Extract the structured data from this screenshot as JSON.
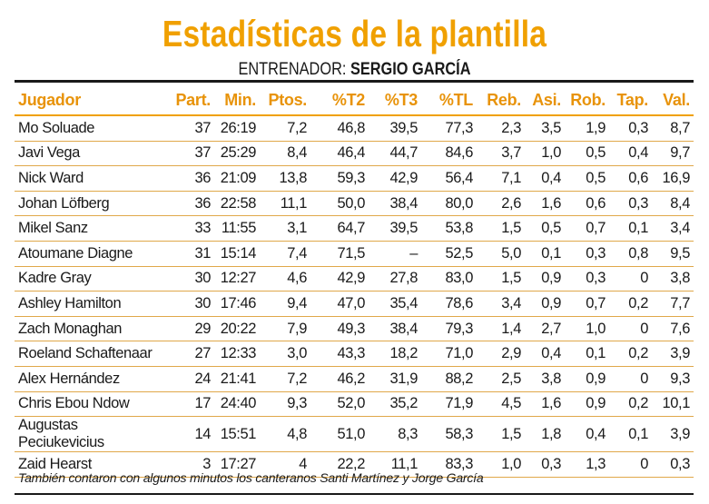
{
  "title": "Estadísticas de la plantilla",
  "coach": {
    "label": "ENTRENADOR:",
    "name": "SERGIO GARCÍA"
  },
  "colors": {
    "accent": "#f0a000",
    "text": "#1a1a1a"
  },
  "columns": [
    "Jugador",
    "Part.",
    "Min.",
    "Ptos.",
    "%T2",
    "%T3",
    "%TL",
    "Reb.",
    "Asi.",
    "Rob.",
    "Tap.",
    "Val."
  ],
  "rows": [
    [
      "Mo Soluade",
      "37",
      "26:19",
      "7,2",
      "46,8",
      "39,5",
      "77,3",
      "2,3",
      "3,5",
      "1,9",
      "0,3",
      "8,7"
    ],
    [
      "Javi Vega",
      "37",
      "25:29",
      "8,4",
      "46,4",
      "44,7",
      "84,6",
      "3,7",
      "1,0",
      "0,5",
      "0,4",
      "9,7"
    ],
    [
      "Nick Ward",
      "36",
      "21:09",
      "13,8",
      "59,3",
      "42,9",
      "56,4",
      "7,1",
      "0,4",
      "0,5",
      "0,6",
      "16,9"
    ],
    [
      "Johan Löfberg",
      "36",
      "22:58",
      "11,1",
      "50,0",
      "38,4",
      "80,0",
      "2,6",
      "1,6",
      "0,6",
      "0,3",
      "8,4"
    ],
    [
      "Mikel Sanz",
      "33",
      "11:55",
      "3,1",
      "64,7",
      "39,5",
      "53,8",
      "1,5",
      "0,5",
      "0,7",
      "0,1",
      "3,4"
    ],
    [
      "Atoumane Diagne",
      "31",
      "15:14",
      "7,4",
      "71,5",
      "–",
      "52,5",
      "5,0",
      "0,1",
      "0,3",
      "0,8",
      "9,5"
    ],
    [
      "Kadre Gray",
      "30",
      "12:27",
      "4,6",
      "42,9",
      "27,8",
      "83,0",
      "1,5",
      "0,9",
      "0,3",
      "0",
      "3,8"
    ],
    [
      "Ashley Hamilton",
      "30",
      "17:46",
      "9,4",
      "47,0",
      "35,4",
      "78,6",
      "3,4",
      "0,9",
      "0,7",
      "0,2",
      "7,7"
    ],
    [
      "Zach Monaghan",
      "29",
      "20:22",
      "7,9",
      "49,3",
      "38,4",
      "79,3",
      "1,4",
      "2,7",
      "1,0",
      "0",
      "7,6"
    ],
    [
      "Roeland Schaftenaar",
      "27",
      "12:33",
      "3,0",
      "43,3",
      "18,2",
      "71,0",
      "2,9",
      "0,4",
      "0,1",
      "0,2",
      "3,9"
    ],
    [
      "Alex Hernández",
      "24",
      "21:41",
      "7,2",
      "46,2",
      "31,9",
      "88,2",
      "2,5",
      "3,8",
      "0,9",
      "0",
      "9,3"
    ],
    [
      "Chris Ebou Ndow",
      "17",
      "24:40",
      "9,3",
      "52,0",
      "35,2",
      "71,9",
      "4,5",
      "1,6",
      "0,9",
      "0,2",
      "10,1"
    ],
    [
      "Augustas Peciukevicius",
      "14",
      "15:51",
      "4,8",
      "51,0",
      "8,3",
      "58,3",
      "1,5",
      "1,8",
      "0,4",
      "0,1",
      "3,9"
    ],
    [
      "Zaid Hearst",
      "3",
      "17:27",
      "4",
      "22,2",
      "11,1",
      "83,3",
      "1,0",
      "0,3",
      "1,3",
      "0",
      "0,3"
    ]
  ],
  "footnote": "También contaron con algunos minutos los canteranos Santi Martínez y Jorge García"
}
